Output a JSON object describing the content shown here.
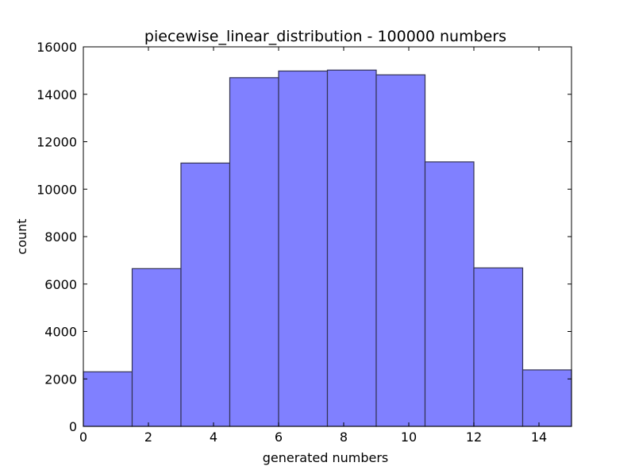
{
  "chart_data": {
    "type": "bar",
    "title": "piecewise_linear_distribution - 100000 numbers",
    "xlabel": "generated numbers",
    "ylabel": "count",
    "xlim": [
      0,
      15
    ],
    "ylim": [
      0,
      16000
    ],
    "xticks": [
      0,
      2,
      4,
      6,
      8,
      10,
      12,
      14
    ],
    "yticks": [
      0,
      2000,
      4000,
      6000,
      8000,
      10000,
      12000,
      14000,
      16000
    ],
    "bins": [
      {
        "start": 0,
        "end": 1.5,
        "count": 2300
      },
      {
        "start": 1.5,
        "end": 3,
        "count": 6650
      },
      {
        "start": 3,
        "end": 4.5,
        "count": 11100
      },
      {
        "start": 4.5,
        "end": 6,
        "count": 14700
      },
      {
        "start": 6,
        "end": 7.5,
        "count": 14980
      },
      {
        "start": 7.5,
        "end": 9,
        "count": 15020
      },
      {
        "start": 9,
        "end": 10.5,
        "count": 14820
      },
      {
        "start": 10.5,
        "end": 12,
        "count": 11150
      },
      {
        "start": 12,
        "end": 13.5,
        "count": 6680
      },
      {
        "start": 13.5,
        "end": 15,
        "count": 2380
      }
    ],
    "grid": false,
    "bar_color": "#8080ff",
    "bar_edge_color": "#333355"
  }
}
